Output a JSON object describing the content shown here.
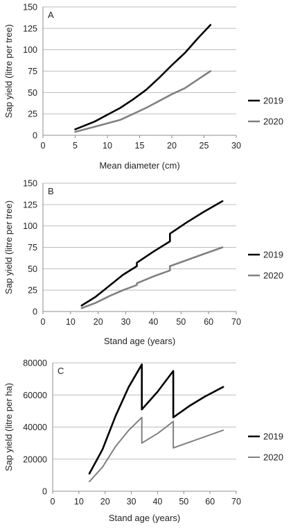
{
  "chart_data": [
    {
      "type": "line",
      "panel_label": "A",
      "xlabel": "Mean diameter (cm)",
      "ylabel": "Sap yield (litre per tree)",
      "xlim": [
        0,
        30
      ],
      "ylim": [
        0,
        150
      ],
      "xticks": [
        0,
        5,
        10,
        15,
        20,
        25,
        30
      ],
      "yticks": [
        0,
        25,
        50,
        75,
        100,
        125,
        150
      ],
      "grid": true,
      "legend_position": "right",
      "series": [
        {
          "name": "2019",
          "color": "#000000",
          "x": [
            5,
            8,
            10,
            12,
            14,
            16,
            18,
            20,
            22,
            24,
            26
          ],
          "y": [
            7,
            16,
            24,
            32,
            42,
            53,
            67,
            82,
            96,
            113,
            129
          ]
        },
        {
          "name": "2020",
          "color": "#808080",
          "x": [
            5,
            8,
            10,
            12,
            14,
            16,
            18,
            20,
            22,
            24,
            26
          ],
          "y": [
            4,
            10,
            14,
            18,
            25,
            32,
            40,
            48,
            55,
            65,
            75
          ]
        }
      ]
    },
    {
      "type": "line",
      "panel_label": "B",
      "xlabel": "Stand age (years)",
      "ylabel": "Sap yield (litre per tree)",
      "xlim": [
        0,
        70
      ],
      "ylim": [
        0,
        150
      ],
      "xticks": [
        0,
        10,
        20,
        30,
        40,
        50,
        60,
        70
      ],
      "yticks": [
        0,
        25,
        50,
        75,
        100,
        125,
        150
      ],
      "grid": true,
      "legend_position": "right",
      "series": [
        {
          "name": "2019",
          "color": "#000000",
          "x": [
            14,
            19,
            24,
            29,
            34,
            34,
            40,
            46,
            46,
            52,
            58,
            65
          ],
          "y": [
            7,
            17,
            30,
            43,
            53,
            57,
            70,
            82,
            91,
            104,
            116,
            129
          ]
        },
        {
          "name": "2020",
          "color": "#808080",
          "x": [
            14,
            19,
            24,
            29,
            34,
            34,
            40,
            46,
            46,
            52,
            58,
            65
          ],
          "y": [
            4,
            10,
            18,
            25,
            31,
            33,
            41,
            48,
            53,
            60,
            67,
            75
          ]
        }
      ]
    },
    {
      "type": "line",
      "panel_label": "C",
      "xlabel": "Stand age (years)",
      "ylabel": "Sap yield (litre per ha)",
      "xlim": [
        0,
        70
      ],
      "ylim": [
        0,
        80000
      ],
      "xticks": [
        0,
        10,
        20,
        30,
        40,
        50,
        60,
        70
      ],
      "yticks": [
        0,
        20000,
        40000,
        60000,
        80000
      ],
      "grid": true,
      "legend_position": "right",
      "series": [
        {
          "name": "2019",
          "color": "#000000",
          "x": [
            14,
            19,
            24,
            29,
            34,
            34,
            40,
            46,
            46,
            52,
            58,
            65
          ],
          "y": [
            11000,
            26000,
            47000,
            65000,
            79000,
            51000,
            62000,
            75000,
            46000,
            53000,
            59000,
            65000
          ]
        },
        {
          "name": "2020",
          "color": "#808080",
          "x": [
            14,
            19,
            24,
            29,
            34,
            34,
            40,
            46,
            46,
            52,
            58,
            65
          ],
          "y": [
            6000,
            15000,
            28000,
            38000,
            46000,
            30000,
            36000,
            43500,
            27000,
            30500,
            34000,
            38000
          ]
        }
      ]
    }
  ]
}
